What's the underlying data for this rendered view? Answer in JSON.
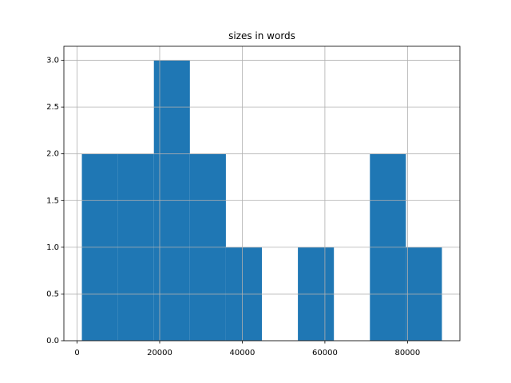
{
  "chart_data": {
    "type": "histogram",
    "title": "sizes in words",
    "bins": [
      1162,
      9879,
      18596,
      27313,
      36030,
      44747,
      53464,
      62181,
      70898,
      79615,
      88332
    ],
    "values": [
      2,
      2,
      3,
      2,
      1,
      0,
      1,
      0,
      2,
      1
    ],
    "color": "#1f77b4",
    "xlim": [
      -3196,
      92687
    ],
    "xticks": [
      0,
      20000,
      40000,
      60000,
      80000
    ],
    "ylim": [
      0,
      3.15
    ],
    "yticks": [
      {
        "value": 0,
        "label": "0.0"
      },
      0.5,
      {
        "value": 1,
        "label": "1.0"
      },
      1.5,
      {
        "value": 2,
        "label": "2.0"
      },
      2.5,
      {
        "value": 3,
        "label": "3.0"
      }
    ],
    "grid": true
  }
}
